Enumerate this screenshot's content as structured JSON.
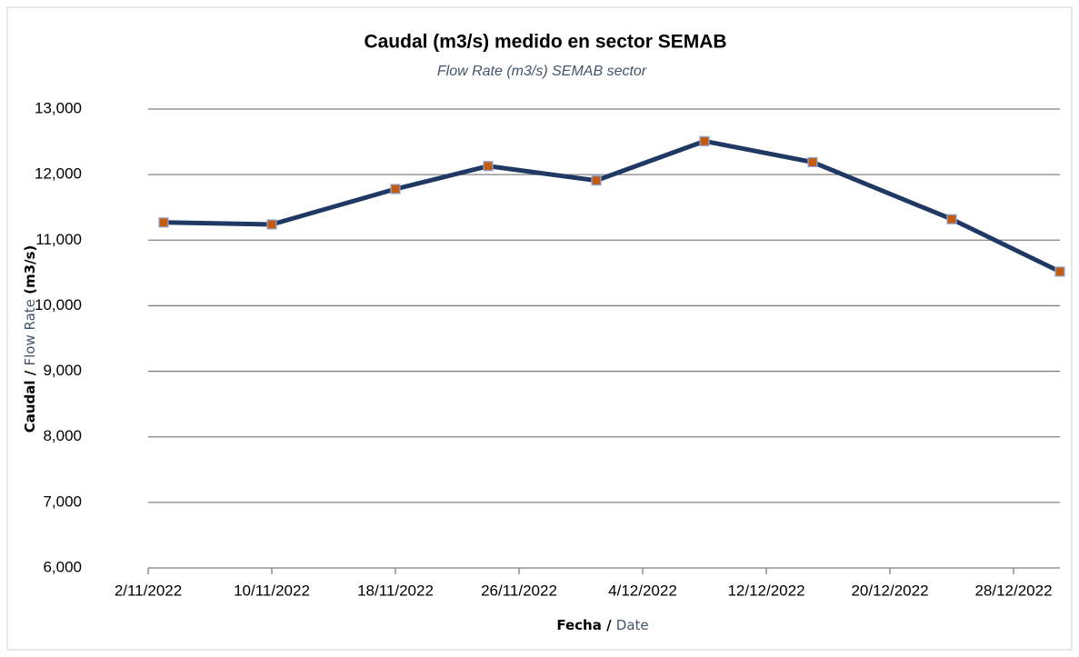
{
  "chart_data": {
    "type": "line",
    "title": "Caudal (m3/s) medido en sector SEMAB",
    "subtitle": "Flow Rate (m3/s) SEMAB sector",
    "x_label": [
      "Fecha /",
      "Date"
    ],
    "y_label": [
      "Caudal /",
      "Flow Rate",
      "(m3/s)"
    ],
    "x": [
      "2022-11-03",
      "2022-11-10",
      "2022-11-18",
      "2022-11-24",
      "2022-12-01",
      "2022-12-08",
      "2022-12-15",
      "2022-12-24",
      "2022-12-31"
    ],
    "series": [
      {
        "name": "Caudal",
        "color": "#1f3864",
        "marker_color": "#c55a11",
        "values": [
          11270,
          11240,
          11780,
          12130,
          11910,
          12510,
          12190,
          11320,
          10520
        ]
      }
    ],
    "xlim": [
      "2022-11-02",
      "2022-12-31"
    ],
    "xticks": [
      {
        "value": "2022-11-02",
        "label": "2/11/2022"
      },
      {
        "value": "2022-11-10",
        "label": "10/11/2022"
      },
      {
        "value": "2022-11-18",
        "label": "18/11/2022"
      },
      {
        "value": "2022-11-26",
        "label": "26/11/2022"
      },
      {
        "value": "2022-12-04",
        "label": "4/12/2022"
      },
      {
        "value": "2022-12-12",
        "label": "12/12/2022"
      },
      {
        "value": "2022-12-20",
        "label": "20/12/2022"
      },
      {
        "value": "2022-12-28",
        "label": "28/12/2022"
      }
    ],
    "ylim": [
      6000,
      13000
    ],
    "yticks": [
      {
        "value": 6000,
        "label": "6,000"
      },
      {
        "value": 7000,
        "label": "7,000"
      },
      {
        "value": 8000,
        "label": "8,000"
      },
      {
        "value": 9000,
        "label": "9,000"
      },
      {
        "value": 10000,
        "label": "10,000"
      },
      {
        "value": 11000,
        "label": "11,000"
      },
      {
        "value": 12000,
        "label": "12,000"
      },
      {
        "value": 13000,
        "label": "13,000"
      }
    ],
    "grid": true
  }
}
